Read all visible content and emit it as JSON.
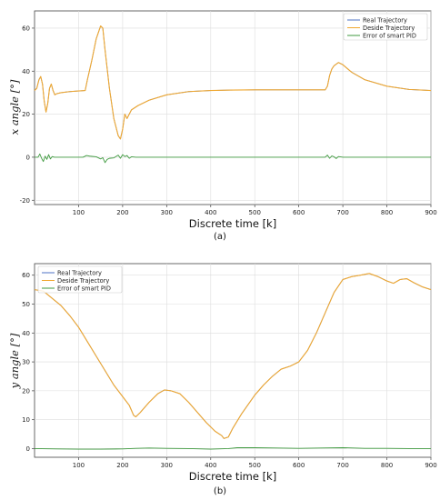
{
  "chart_data": [
    {
      "type": "line",
      "caption": "(a)",
      "xlabel": "Discrete time [k]",
      "ylabel": "x angle [°]",
      "xlim": [
        0,
        900
      ],
      "ylim": [
        -22,
        68
      ],
      "xticks": [
        100,
        200,
        300,
        400,
        500,
        600,
        700,
        800,
        900
      ],
      "yticks": [
        -20,
        0,
        20,
        40,
        60
      ],
      "legend_position": "top-right",
      "series": [
        {
          "name": "Real Trajectory",
          "color": "#4c72c4",
          "points": [
            [
              0,
              31
            ],
            [
              5,
              32
            ],
            [
              10,
              36
            ],
            [
              14,
              37.5
            ],
            [
              18,
              34
            ],
            [
              22,
              26
            ],
            [
              26,
              21
            ],
            [
              30,
              25
            ],
            [
              34,
              32
            ],
            [
              38,
              34
            ],
            [
              42,
              31
            ],
            [
              46,
              29
            ],
            [
              50,
              29.5
            ],
            [
              60,
              30
            ],
            [
              80,
              30.5
            ],
            [
              100,
              30.8
            ],
            [
              115,
              31
            ],
            [
              120,
              36
            ],
            [
              130,
              45
            ],
            [
              140,
              55
            ],
            [
              150,
              61
            ],
            [
              155,
              60
            ],
            [
              160,
              50
            ],
            [
              170,
              32
            ],
            [
              180,
              18
            ],
            [
              190,
              10
            ],
            [
              195,
              8.5
            ],
            [
              200,
              13
            ],
            [
              205,
              20
            ],
            [
              210,
              18
            ],
            [
              215,
              20
            ],
            [
              220,
              22
            ],
            [
              235,
              24
            ],
            [
              260,
              26.5
            ],
            [
              300,
              29
            ],
            [
              350,
              30.5
            ],
            [
              400,
              31
            ],
            [
              450,
              31.2
            ],
            [
              500,
              31.3
            ],
            [
              600,
              31.3
            ],
            [
              660,
              31.3
            ],
            [
              665,
              33
            ],
            [
              670,
              38
            ],
            [
              675,
              41
            ],
            [
              680,
              42.5
            ],
            [
              690,
              44
            ],
            [
              700,
              43
            ],
            [
              720,
              39.5
            ],
            [
              750,
              36
            ],
            [
              800,
              33
            ],
            [
              850,
              31.5
            ],
            [
              900,
              31
            ]
          ]
        },
        {
          "name": "Deside Trajectory",
          "color": "#f0a830",
          "points": [
            [
              0,
              31
            ],
            [
              5,
              32
            ],
            [
              10,
              36
            ],
            [
              14,
              37.5
            ],
            [
              18,
              34
            ],
            [
              22,
              26
            ],
            [
              26,
              21
            ],
            [
              30,
              25
            ],
            [
              34,
              32
            ],
            [
              38,
              34
            ],
            [
              42,
              31
            ],
            [
              46,
              29
            ],
            [
              50,
              29.5
            ],
            [
              60,
              30
            ],
            [
              80,
              30.5
            ],
            [
              100,
              30.8
            ],
            [
              115,
              31
            ],
            [
              120,
              36
            ],
            [
              130,
              45
            ],
            [
              140,
              55
            ],
            [
              150,
              61
            ],
            [
              155,
              60
            ],
            [
              160,
              50
            ],
            [
              170,
              32
            ],
            [
              180,
              18
            ],
            [
              190,
              10
            ],
            [
              195,
              8.5
            ],
            [
              200,
              13
            ],
            [
              205,
              20
            ],
            [
              210,
              18
            ],
            [
              215,
              20
            ],
            [
              220,
              22
            ],
            [
              235,
              24
            ],
            [
              260,
              26.5
            ],
            [
              300,
              29
            ],
            [
              350,
              30.5
            ],
            [
              400,
              31
            ],
            [
              450,
              31.2
            ],
            [
              500,
              31.3
            ],
            [
              600,
              31.3
            ],
            [
              660,
              31.3
            ],
            [
              665,
              33
            ],
            [
              670,
              38
            ],
            [
              675,
              41
            ],
            [
              680,
              42.5
            ],
            [
              690,
              44
            ],
            [
              700,
              43
            ],
            [
              720,
              39.5
            ],
            [
              750,
              36
            ],
            [
              800,
              33
            ],
            [
              850,
              31.5
            ],
            [
              900,
              31
            ]
          ]
        },
        {
          "name": "Error of smart PID",
          "color": "#3f9a3f",
          "points": [
            [
              0,
              0
            ],
            [
              8,
              0
            ],
            [
              12,
              1.5
            ],
            [
              16,
              -0.5
            ],
            [
              20,
              -2
            ],
            [
              24,
              0.5
            ],
            [
              28,
              -1
            ],
            [
              32,
              1.2
            ],
            [
              36,
              -0.8
            ],
            [
              40,
              0.3
            ],
            [
              45,
              0
            ],
            [
              110,
              0
            ],
            [
              118,
              0.8
            ],
            [
              125,
              0.5
            ],
            [
              140,
              0.2
            ],
            [
              150,
              -0.8
            ],
            [
              155,
              -0.2
            ],
            [
              160,
              -2.5
            ],
            [
              165,
              -1
            ],
            [
              170,
              -0.5
            ],
            [
              180,
              -0.3
            ],
            [
              190,
              1
            ],
            [
              195,
              -0.5
            ],
            [
              200,
              1.2
            ],
            [
              205,
              0.3
            ],
            [
              210,
              0.8
            ],
            [
              215,
              -0.5
            ],
            [
              220,
              0.2
            ],
            [
              230,
              0
            ],
            [
              660,
              0
            ],
            [
              665,
              1
            ],
            [
              670,
              -0.5
            ],
            [
              675,
              0.6
            ],
            [
              680,
              0.2
            ],
            [
              685,
              -0.6
            ],
            [
              690,
              0.3
            ],
            [
              700,
              0
            ],
            [
              900,
              0
            ]
          ]
        }
      ]
    },
    {
      "type": "line",
      "caption": "(b)",
      "xlabel": "Discrete time [k]",
      "ylabel": "y angle [°]",
      "xlim": [
        0,
        900
      ],
      "ylim": [
        -3,
        64
      ],
      "xticks": [
        100,
        200,
        300,
        400,
        500,
        600,
        700,
        800,
        900
      ],
      "yticks": [
        0,
        10,
        20,
        30,
        40,
        50,
        60
      ],
      "legend_position": "top-left",
      "series": [
        {
          "name": "Real Trajectory",
          "color": "#4c72c4",
          "points": [
            [
              0,
              55
            ],
            [
              20,
              54.5
            ],
            [
              40,
              52
            ],
            [
              60,
              49.5
            ],
            [
              80,
              46
            ],
            [
              100,
              42
            ],
            [
              120,
              37
            ],
            [
              140,
              32
            ],
            [
              160,
              27
            ],
            [
              180,
              22
            ],
            [
              200,
              18
            ],
            [
              215,
              15
            ],
            [
              225,
              11.5
            ],
            [
              230,
              11
            ],
            [
              240,
              12.5
            ],
            [
              260,
              16
            ],
            [
              280,
              19
            ],
            [
              295,
              20.3
            ],
            [
              310,
              20
            ],
            [
              330,
              19
            ],
            [
              350,
              16
            ],
            [
              370,
              12.5
            ],
            [
              390,
              9
            ],
            [
              410,
              6
            ],
            [
              425,
              4.5
            ],
            [
              430,
              3.5
            ],
            [
              440,
              4
            ],
            [
              450,
              7
            ],
            [
              470,
              12
            ],
            [
              500,
              18.5
            ],
            [
              520,
              22
            ],
            [
              540,
              25
            ],
            [
              560,
              27.5
            ],
            [
              580,
              28.5
            ],
            [
              600,
              30
            ],
            [
              620,
              34
            ],
            [
              640,
              40
            ],
            [
              660,
              47
            ],
            [
              680,
              54
            ],
            [
              700,
              58.5
            ],
            [
              720,
              59.5
            ],
            [
              740,
              60
            ],
            [
              760,
              60.6
            ],
            [
              780,
              59.5
            ],
            [
              800,
              58
            ],
            [
              815,
              57.2
            ],
            [
              830,
              58.5
            ],
            [
              845,
              58.8
            ],
            [
              860,
              57.5
            ],
            [
              880,
              56
            ],
            [
              900,
              55
            ]
          ]
        },
        {
          "name": "Deside Trajectory",
          "color": "#f0a830",
          "points": [
            [
              0,
              55
            ],
            [
              20,
              54.5
            ],
            [
              40,
              52
            ],
            [
              60,
              49.5
            ],
            [
              80,
              46
            ],
            [
              100,
              42
            ],
            [
              120,
              37
            ],
            [
              140,
              32
            ],
            [
              160,
              27
            ],
            [
              180,
              22
            ],
            [
              200,
              18
            ],
            [
              215,
              15
            ],
            [
              225,
              11.5
            ],
            [
              230,
              11
            ],
            [
              240,
              12.5
            ],
            [
              260,
              16
            ],
            [
              280,
              19
            ],
            [
              295,
              20.3
            ],
            [
              310,
              20
            ],
            [
              330,
              19
            ],
            [
              350,
              16
            ],
            [
              370,
              12.5
            ],
            [
              390,
              9
            ],
            [
              410,
              6
            ],
            [
              425,
              4.5
            ],
            [
              430,
              3.5
            ],
            [
              440,
              4
            ],
            [
              450,
              7
            ],
            [
              470,
              12
            ],
            [
              500,
              18.5
            ],
            [
              520,
              22
            ],
            [
              540,
              25
            ],
            [
              560,
              27.5
            ],
            [
              580,
              28.5
            ],
            [
              600,
              30
            ],
            [
              620,
              34
            ],
            [
              640,
              40
            ],
            [
              660,
              47
            ],
            [
              680,
              54
            ],
            [
              700,
              58.5
            ],
            [
              720,
              59.5
            ],
            [
              740,
              60
            ],
            [
              760,
              60.6
            ],
            [
              780,
              59.5
            ],
            [
              800,
              58
            ],
            [
              815,
              57.2
            ],
            [
              830,
              58.5
            ],
            [
              845,
              58.8
            ],
            [
              860,
              57.5
            ],
            [
              880,
              56
            ],
            [
              900,
              55
            ]
          ]
        },
        {
          "name": "Error of smart PID",
          "color": "#3f9a3f",
          "points": [
            [
              0,
              0
            ],
            [
              50,
              -0.1
            ],
            [
              100,
              -0.2
            ],
            [
              150,
              -0.2
            ],
            [
              200,
              -0.1
            ],
            [
              230,
              0.1
            ],
            [
              260,
              0.2
            ],
            [
              300,
              0.1
            ],
            [
              350,
              0
            ],
            [
              400,
              -0.2
            ],
            [
              440,
              0
            ],
            [
              460,
              0.3
            ],
            [
              500,
              0.3
            ],
            [
              550,
              0.2
            ],
            [
              600,
              0.1
            ],
            [
              650,
              0.2
            ],
            [
              700,
              0.3
            ],
            [
              750,
              0.1
            ],
            [
              800,
              0.1
            ],
            [
              850,
              0
            ],
            [
              900,
              0
            ]
          ]
        }
      ]
    }
  ]
}
